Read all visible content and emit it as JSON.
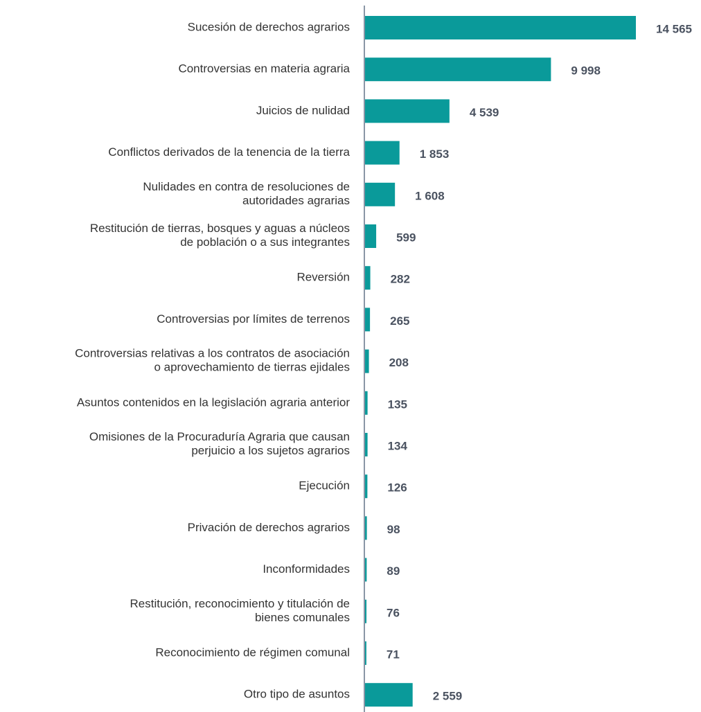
{
  "chart_data": {
    "type": "bar",
    "orientation": "horizontal",
    "color": "#0a9a9a",
    "categories": [
      "Sucesión de derechos agrarios",
      "Controversias en materia agraria",
      "Juicios de nulidad",
      "Conflictos derivados de la tenencia de la tierra",
      "Nulidades en contra de resoluciones de\nautoridades agrarias",
      "Restitución de tierras, bosques y aguas a núcleos\nde población o a sus integrantes",
      "Reversión",
      "Controversias por límites de terrenos",
      "Controversias relativas a los contratos de asociación\no aprovechamiento de tierras ejidales",
      "Asuntos contenidos en la legislación agraria anterior",
      "Omisiones de la Procuraduría Agraria que causan\nperjuicio a los sujetos agrarios",
      "Ejecución",
      "Privación de derechos agrarios",
      "Inconformidades",
      "Restitución, reconocimiento y titulación de\nbienes comunales",
      "Reconocimiento de régimen comunal",
      "Otro tipo de asuntos"
    ],
    "values": [
      14565,
      9998,
      4539,
      1853,
      1608,
      599,
      282,
      265,
      208,
      135,
      134,
      126,
      98,
      89,
      76,
      71,
      2559
    ],
    "value_labels": [
      "14 565",
      "9 998",
      "4 539",
      "1 853",
      "1 608",
      "599",
      "282",
      "265",
      "208",
      "135",
      "134",
      "126",
      "98",
      "89",
      "76",
      "71",
      "2 559"
    ]
  }
}
